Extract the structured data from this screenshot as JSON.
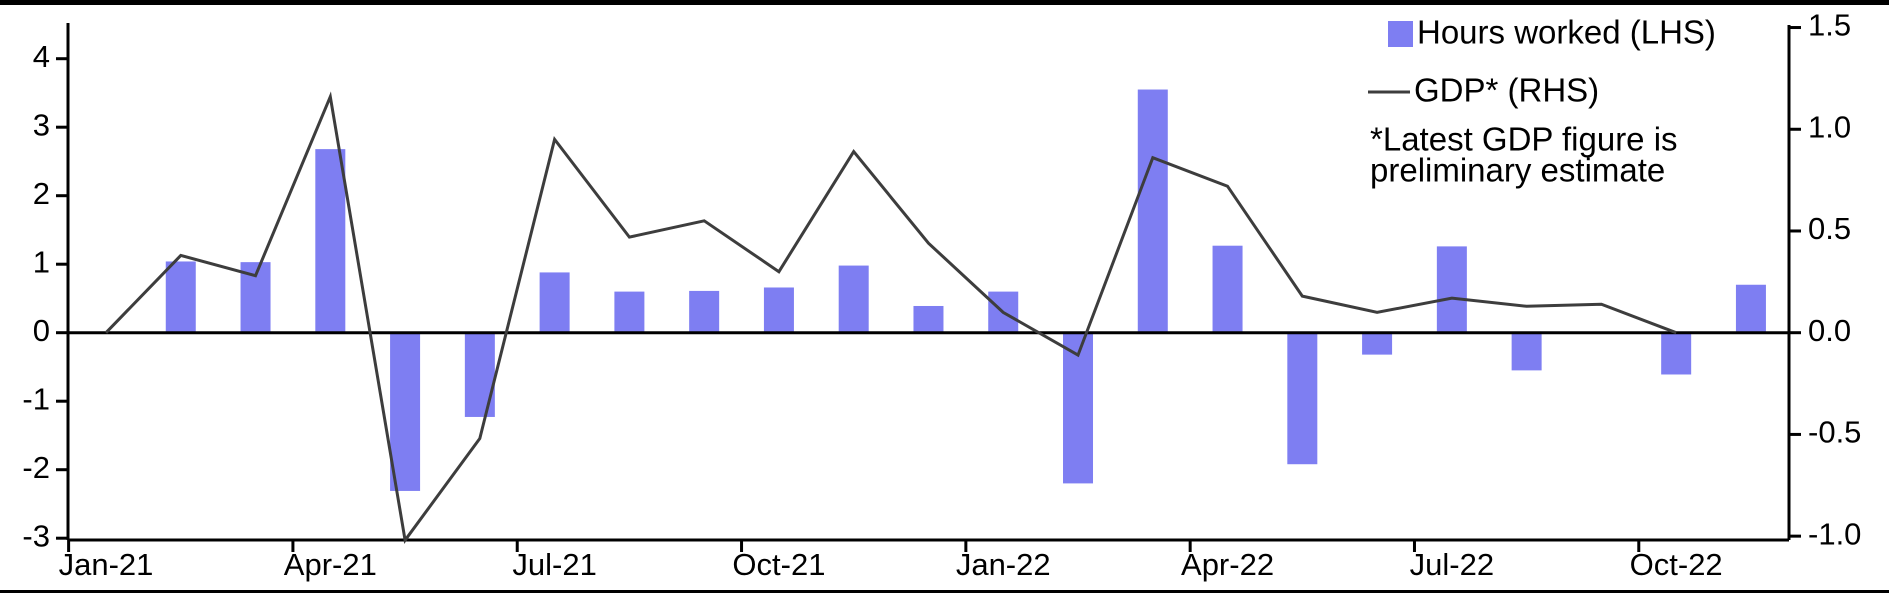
{
  "page": {
    "background": "#ffffff"
  },
  "chart_data": {
    "type": "combo",
    "title": "",
    "categories": [
      "Jan-21",
      "Feb-21",
      "Mar-21",
      "Apr-21",
      "May-21",
      "Jun-21",
      "Jul-21",
      "Aug-21",
      "Sep-21",
      "Oct-21",
      "Nov-21",
      "Dec-21",
      "Jan-22",
      "Feb-22",
      "Mar-22",
      "Apr-22",
      "May-22",
      "Jun-22",
      "Jul-22",
      "Aug-22",
      "Sep-22",
      "Oct-22",
      "Nov-22"
    ],
    "series": [
      {
        "name": "Hours worked (LHS)",
        "type": "bar",
        "axis": "left",
        "color": "#7e7ef2",
        "values": [
          0,
          1.04,
          1.03,
          2.68,
          -2.31,
          -1.23,
          0.88,
          0.6,
          0.61,
          0.66,
          0.98,
          0.39,
          0.6,
          -2.2,
          3.55,
          1.27,
          -1.92,
          -0.32,
          1.26,
          -0.55,
          0,
          -0.61,
          0.7
        ]
      },
      {
        "name": "GDP* (RHS)",
        "type": "line",
        "axis": "right",
        "color": "#3d3d3d",
        "values": [
          0.0,
          0.38,
          0.28,
          1.16,
          -1.02,
          -0.52,
          0.95,
          0.47,
          0.55,
          0.3,
          0.89,
          0.44,
          0.1,
          -0.11,
          0.86,
          0.72,
          0.18,
          0.1,
          0.17,
          0.13,
          0.14,
          0.0,
          null
        ]
      }
    ],
    "left_axis": {
      "tick_labels": [
        "4",
        "3",
        "2",
        "1",
        "0",
        "-1",
        "-2",
        "-3"
      ],
      "range": [
        -3,
        4
      ],
      "grid": false
    },
    "right_axis": {
      "tick_labels": [
        "1.5",
        "1.0",
        "0.5",
        "0.0",
        "-0.5",
        "-1.0"
      ],
      "range": [
        -1.0,
        1.5
      ],
      "grid": false
    },
    "x_tick_labels": [
      "Jan-21",
      "Apr-21",
      "Jul-21",
      "Oct-21",
      "Jan-22",
      "Apr-22",
      "Jul-22",
      "Oct-22"
    ],
    "legend_position": "top-right",
    "note_lines": [
      "*Latest GDP figure is",
      "preliminary estimate"
    ]
  }
}
